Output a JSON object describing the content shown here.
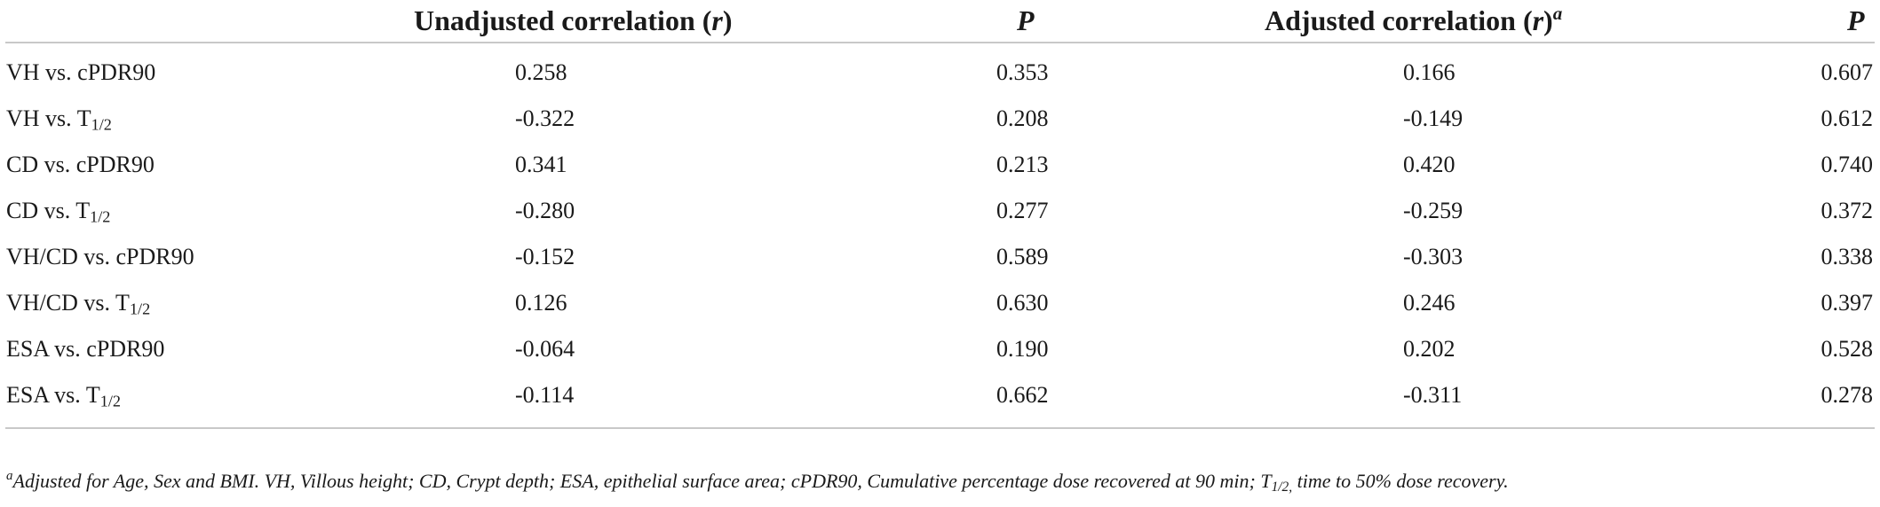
{
  "table": {
    "headers": {
      "unadjusted_text": "Unadjusted correlation (",
      "unadjusted_r": "r",
      "unadjusted_close": ")",
      "p1": "P",
      "adjusted_text": "Adjusted correlation (",
      "adjusted_r": "r",
      "adjusted_close": ")",
      "adjusted_sup": "a",
      "p2": "P"
    },
    "rows": [
      {
        "label": "VH vs. cPDR90",
        "label_sub": "",
        "unadj_r": "0.258",
        "unadj_p": "0.353",
        "adj_r": "0.166",
        "adj_p": "0.607"
      },
      {
        "label": "VH vs. T",
        "label_sub": "1/2",
        "unadj_r": "-0.322",
        "unadj_p": "0.208",
        "adj_r": "-0.149",
        "adj_p": "0.612"
      },
      {
        "label": "CD vs. cPDR90",
        "label_sub": "",
        "unadj_r": "0.341",
        "unadj_p": "0.213",
        "adj_r": "0.420",
        "adj_p": "0.740"
      },
      {
        "label": "CD vs. T",
        "label_sub": "1/2",
        "unadj_r": "-0.280",
        "unadj_p": "0.277",
        "adj_r": "-0.259",
        "adj_p": "0.372"
      },
      {
        "label": "VH/CD vs. cPDR90",
        "label_sub": "",
        "unadj_r": "-0.152",
        "unadj_p": "0.589",
        "adj_r": "-0.303",
        "adj_p": "0.338"
      },
      {
        "label": "VH/CD vs. T",
        "label_sub": "1/2",
        "unadj_r": "0.126",
        "unadj_p": "0.630",
        "adj_r": "0.246",
        "adj_p": "0.397"
      },
      {
        "label": "ESA vs. cPDR90",
        "label_sub": "",
        "unadj_r": "-0.064",
        "unadj_p": "0.190",
        "adj_r": "0.202",
        "adj_p": "0.528"
      },
      {
        "label": "ESA vs. T",
        "label_sub": "1/2",
        "unadj_r": "-0.114",
        "unadj_p": "0.662",
        "adj_r": "-0.311",
        "adj_p": "0.278"
      }
    ],
    "footnote": {
      "marker": "a",
      "text": "Adjusted for Age, Sex and BMI. VH, Villous height; CD, Crypt depth; ESA, epithelial surface area; cPDR90, Cumulative percentage dose recovered at 90 min; T",
      "sub": "1/2,",
      "tail": " time to 50% dose recovery."
    },
    "colors": {
      "text": "#1a1a1a",
      "rule": "#c8c8c8"
    }
  }
}
